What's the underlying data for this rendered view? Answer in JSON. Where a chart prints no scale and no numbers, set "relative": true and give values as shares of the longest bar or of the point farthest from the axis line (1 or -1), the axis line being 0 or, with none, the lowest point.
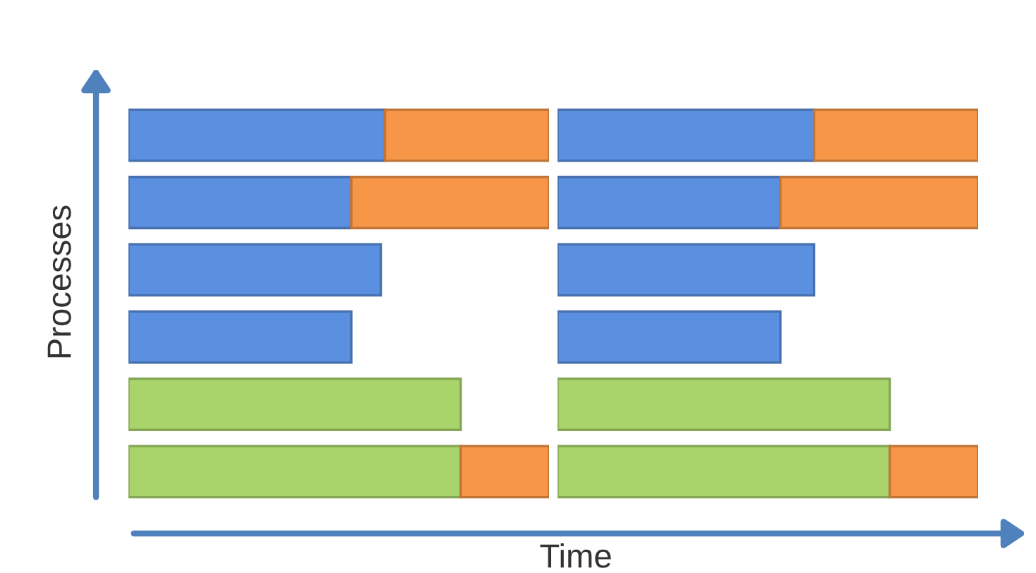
{
  "chart_data": [
    {
      "type": "bar",
      "orientation": "horizontal",
      "stacked": true,
      "relative": true,
      "ylabel": "Processes",
      "grid": false,
      "categories": [
        null,
        null,
        null,
        null,
        null,
        null
      ],
      "series": [
        {
          "color": "#5b8fe0",
          "values": [
            0.61,
            0.53,
            0.6,
            0.53,
            0,
            0
          ]
        },
        {
          "color": "#a9d46b",
          "values": [
            0,
            0,
            0,
            0,
            0.79,
            0.79
          ]
        },
        {
          "color": "#f79646",
          "values": [
            0.39,
            0.47,
            0,
            0,
            0,
            0.21
          ]
        }
      ]
    },
    {
      "type": "bar",
      "orientation": "horizontal",
      "stacked": true,
      "relative": true,
      "xlabel": "Time",
      "grid": false,
      "categories": [
        null,
        null,
        null,
        null,
        null,
        null
      ],
      "series": [
        {
          "color": "#5b8fe0",
          "values": [
            0.61,
            0.53,
            0.61,
            0.53,
            0,
            0
          ]
        },
        {
          "color": "#a9d46b",
          "values": [
            0,
            0,
            0,
            0,
            0.79,
            0.79
          ]
        },
        {
          "color": "#f79646",
          "values": [
            0.39,
            0.47,
            0,
            0,
            0,
            0.21
          ]
        }
      ]
    }
  ]
}
